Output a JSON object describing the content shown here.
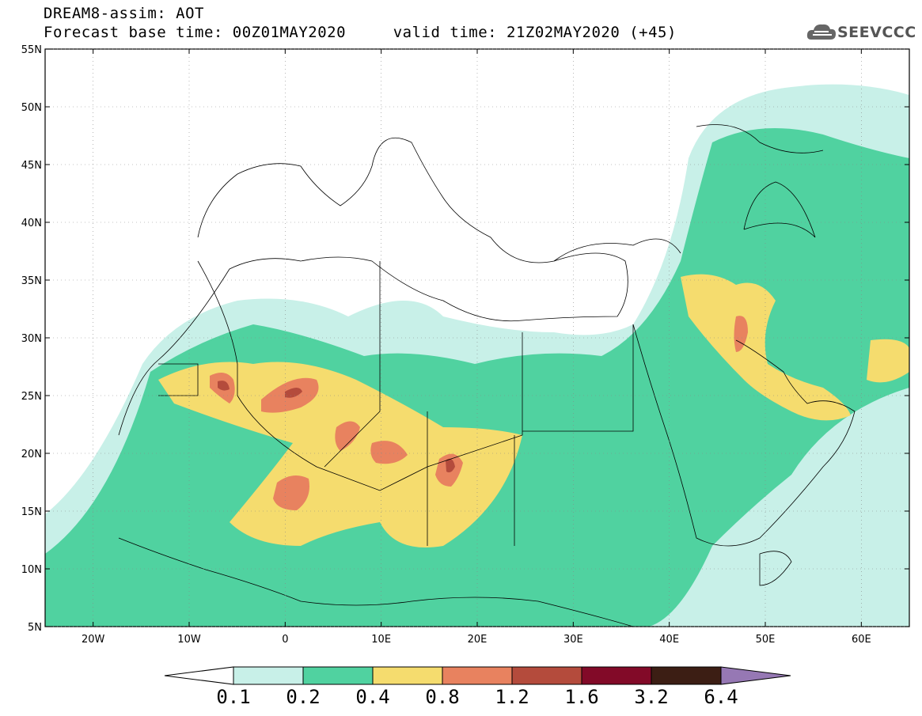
{
  "header": {
    "title_line1": "DREAM8-assim: AOT",
    "title_line2": "Forecast base time: 00Z01MAY2020     valid time: 21Z02MAY2020 (+45)",
    "logo_text": "SEEVCCC"
  },
  "map": {
    "lat_labels": [
      "55N",
      "50N",
      "45N",
      "40N",
      "35N",
      "30N",
      "25N",
      "20N",
      "15N",
      "10N",
      "5N"
    ],
    "lon_labels": [
      "20W",
      "10W",
      "0",
      "10E",
      "20E",
      "30E",
      "40E",
      "50E",
      "60E"
    ],
    "extent": {
      "lon_min": -25,
      "lon_max": 65,
      "lat_min": 5,
      "lat_max": 55
    }
  },
  "colorbar": {
    "levels": [
      "0.1",
      "0.2",
      "0.4",
      "0.8",
      "1.2",
      "1.6",
      "3.2",
      "6.4"
    ],
    "colors": [
      "#c8f0e8",
      "#50d2a0",
      "#f5dc6e",
      "#e8825f",
      "#b44b3c",
      "#820a28",
      "#3c1e14",
      "#9678b4"
    ]
  },
  "colors": {
    "very_light": "#c8f0e8",
    "light": "#50d2a0",
    "yellow": "#f5dc6e",
    "orange": "#e8825f",
    "red": "#b44b3c"
  }
}
